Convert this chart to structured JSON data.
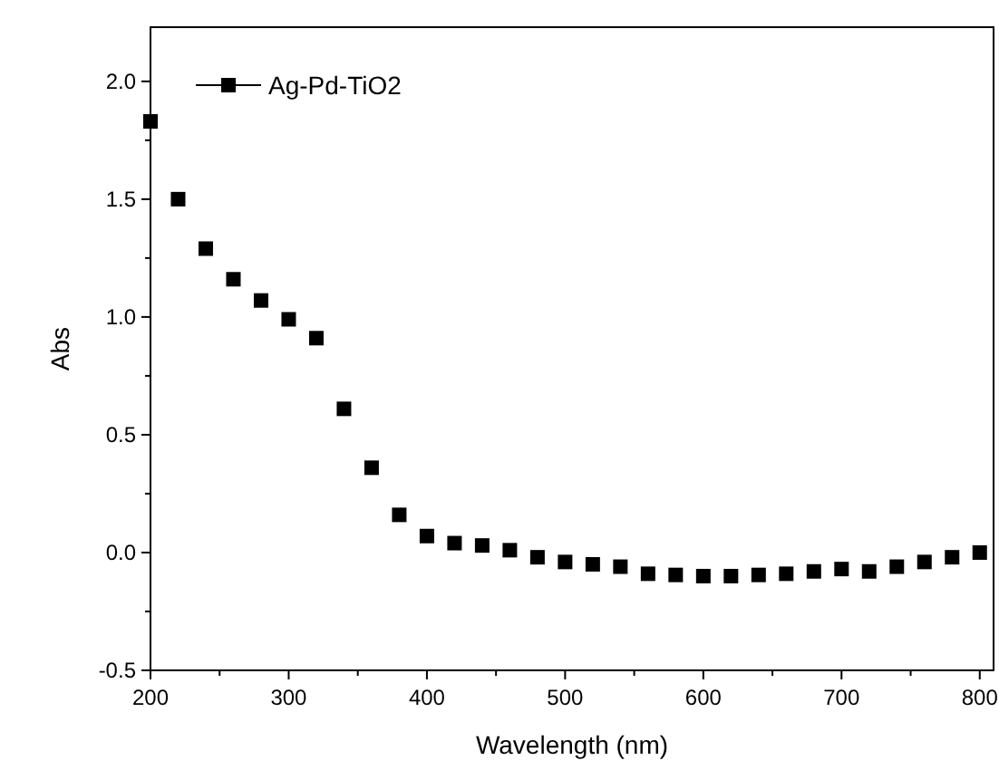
{
  "chart_data": {
    "type": "scatter",
    "xlabel": "Wavelength (nm)",
    "ylabel": "Abs",
    "legend": "top left",
    "marker": "square",
    "grid": false,
    "x": [
      200,
      220,
      240,
      260,
      280,
      300,
      320,
      340,
      360,
      380,
      400,
      420,
      440,
      460,
      480,
      500,
      520,
      540,
      560,
      580,
      600,
      620,
      640,
      660,
      680,
      700,
      720,
      740,
      760,
      780,
      800
    ],
    "series": [
      {
        "name": "Ag-Pd-TiO2",
        "color": "#000000",
        "values": [
          1.83,
          1.5,
          1.29,
          1.16,
          1.07,
          0.99,
          0.91,
          0.61,
          0.36,
          0.16,
          0.07,
          0.04,
          0.03,
          0.01,
          -0.02,
          -0.04,
          -0.05,
          -0.06,
          -0.09,
          -0.095,
          -0.1,
          -0.1,
          -0.095,
          -0.09,
          -0.08,
          -0.07,
          -0.08,
          -0.06,
          -0.04,
          -0.02,
          0.0
        ]
      }
    ],
    "xlim": [
      200,
      810
    ],
    "ylim": [
      -0.5,
      2.23
    ],
    "xticks": [
      200,
      {
        "value": 250,
        "label": null
      },
      300,
      {
        "value": 350,
        "label": null
      },
      400,
      {
        "value": 450,
        "label": null
      },
      500,
      {
        "value": 550,
        "label": null
      },
      600,
      {
        "value": 650,
        "label": null
      },
      700,
      {
        "value": 750,
        "label": null
      },
      800
    ],
    "yticks": [
      {
        "value": -0.5,
        "label": "-0.5"
      },
      {
        "value": -0.25,
        "label": null
      },
      {
        "value": 0,
        "label": "0.0"
      },
      {
        "value": 0.25,
        "label": null
      },
      {
        "value": 0.5,
        "label": "0.5"
      },
      {
        "value": 0.75,
        "label": null
      },
      {
        "value": 1,
        "label": "1.0"
      },
      {
        "value": 1.25,
        "label": null
      },
      {
        "value": 1.5,
        "label": "1.5"
      },
      {
        "value": 1.75,
        "label": null
      },
      {
        "value": 2,
        "label": "2.0"
      }
    ]
  }
}
